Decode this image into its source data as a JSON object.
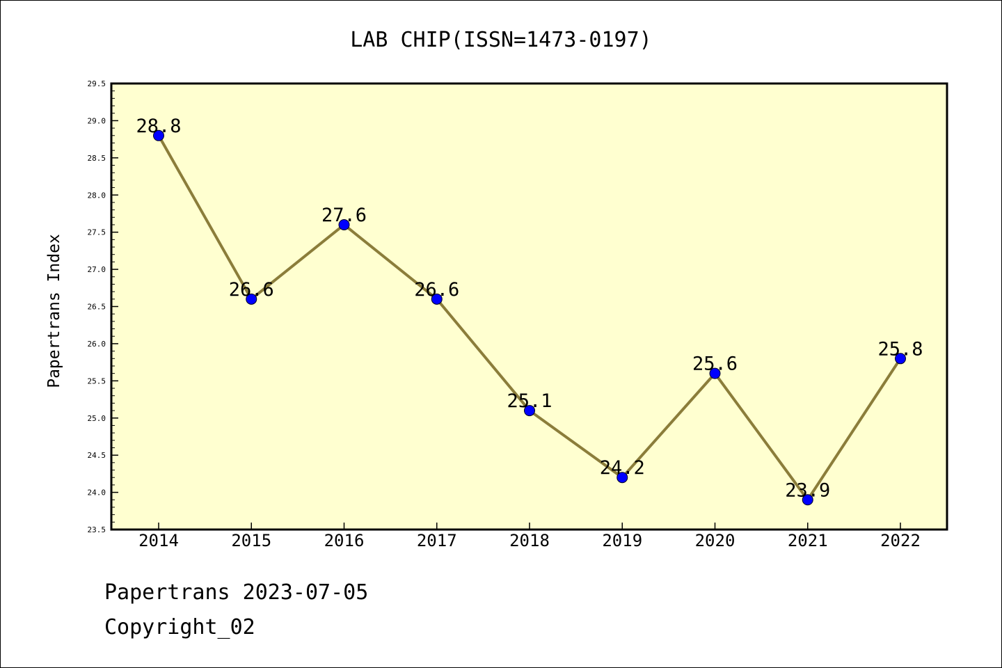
{
  "chart_data": {
    "type": "line",
    "title": "LAB CHIP(ISSN=1473-0197)",
    "xlabel": "",
    "ylabel": "Papertrans Index",
    "categories": [
      "2014",
      "2015",
      "2016",
      "2017",
      "2018",
      "2019",
      "2020",
      "2021",
      "2022"
    ],
    "values": [
      28.8,
      26.6,
      27.6,
      26.6,
      25.1,
      24.2,
      25.6,
      23.9,
      25.8
    ],
    "data_labels": [
      "28.8",
      "26.6",
      "27.6",
      "26.6",
      "25.1",
      "24.2",
      "25.6",
      "23.9",
      "25.8"
    ],
    "ylim": [
      23.5,
      29.5
    ],
    "yticks": [
      "23.5",
      "24.0",
      "24.5",
      "25.0",
      "25.5",
      "26.0",
      "26.5",
      "27.0",
      "27.5",
      "28.0",
      "28.5",
      "29.0",
      "29.5"
    ],
    "grid": false,
    "legend": "none",
    "colors": {
      "plot_background": "#ffffd0",
      "line": "#8b7d3a",
      "marker": "#0000ff"
    }
  },
  "footer": {
    "line1": "Papertrans 2023-07-05",
    "line2": "Copyright_02"
  }
}
